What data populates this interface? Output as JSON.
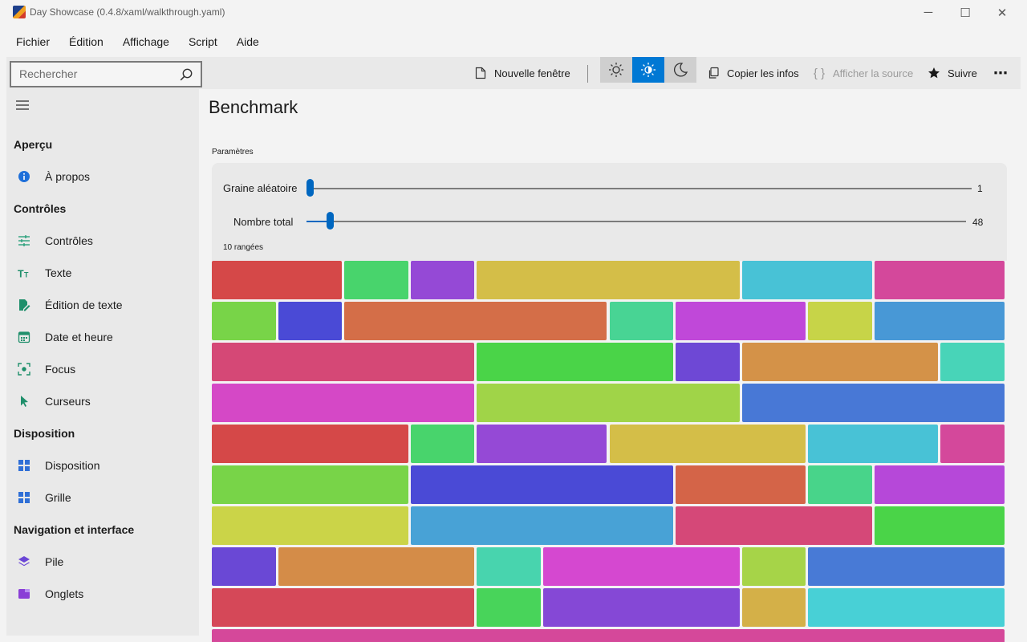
{
  "window": {
    "title": "Day Showcase (0.4.8/xaml/walkthrough.yaml)",
    "controls": [
      "─",
      "☐",
      "✕"
    ]
  },
  "menu": [
    "Fichier",
    "Édition",
    "Affichage",
    "Script",
    "Aide"
  ],
  "toolbar": {
    "search_placeholder": "Rechercher",
    "new_window": "Nouvelle fenêtre",
    "copy_info": "Copier les infos",
    "show_source": "Afficher la source",
    "follow": "Suivre",
    "more": "⋯",
    "theme_selected": "contrast",
    "accent_color": "#0078d4"
  },
  "sidebar": {
    "sections": [
      {
        "title": "Aperçu",
        "items": [
          {
            "label": "À propos",
            "icon": "info-icon"
          }
        ]
      },
      {
        "title": "Contrôles",
        "items": [
          {
            "label": "Contrôles",
            "icon": "sliders-icon"
          },
          {
            "label": "Texte",
            "icon": "text-icon"
          },
          {
            "label": "Édition de texte",
            "icon": "edit-icon"
          },
          {
            "label": "Date et heure",
            "icon": "calendar-icon"
          },
          {
            "label": "Focus",
            "icon": "focus-icon"
          },
          {
            "label": "Curseurs",
            "icon": "cursor-icon"
          }
        ]
      },
      {
        "title": "Disposition",
        "items": [
          {
            "label": "Disposition",
            "icon": "layout-icon"
          },
          {
            "label": "Grille",
            "icon": "grid-icon"
          }
        ]
      },
      {
        "title": "Navigation et interface",
        "items": [
          {
            "label": "Pile",
            "icon": "stack-icon"
          },
          {
            "label": "Onglets",
            "icon": "tabs-icon"
          }
        ]
      }
    ]
  },
  "main": {
    "title": "Benchmark",
    "params_label": "Paramètres",
    "sliders": [
      {
        "label": "Graine aléatoire",
        "value": "1",
        "fraction": 0.0
      },
      {
        "label": "Nombre total",
        "value": "48",
        "fraction": 0.03
      }
    ],
    "rows_label": "10 rangées",
    "rows": [
      [
        [
          "#d54848",
          2
        ],
        [
          "#48d46c",
          1
        ],
        [
          "#9549d6",
          1
        ],
        [
          "#d4be48",
          4
        ],
        [
          "#48c2d6",
          2
        ],
        [
          "#d4489b",
          2
        ]
      ],
      [
        [
          "#78d448",
          1
        ],
        [
          "#4a4ad6",
          1
        ],
        [
          "#d46e48",
          4
        ],
        [
          "#48d494",
          1
        ],
        [
          "#c048d9",
          2
        ],
        [
          "#c7d448",
          1
        ],
        [
          "#4898d6",
          2
        ]
      ],
      [
        [
          "#d54876",
          4
        ],
        [
          "#4ad448",
          3
        ],
        [
          "#6e48d5",
          1
        ],
        [
          "#d49248",
          3
        ],
        [
          "#48d4b8",
          1
        ]
      ],
      [
        [
          "#d548c6",
          4
        ],
        [
          "#a0d448",
          4
        ],
        [
          "#4878d6",
          4
        ]
      ],
      [
        [
          "#d54848",
          3
        ],
        [
          "#48d46c",
          1
        ],
        [
          "#9549d6",
          2
        ],
        [
          "#d4be48",
          3
        ],
        [
          "#48c2d6",
          2
        ],
        [
          "#d4489b",
          1
        ]
      ],
      [
        [
          "#78d448",
          3
        ],
        [
          "#4a4ad6",
          4
        ],
        [
          "#d46448",
          2
        ],
        [
          "#48d48a",
          1
        ],
        [
          "#b648d9",
          2
        ]
      ],
      [
        [
          "#cbd448",
          3
        ],
        [
          "#48a2d6",
          4
        ],
        [
          "#d54878",
          3
        ],
        [
          "#4ad448",
          2
        ]
      ],
      [
        [
          "#6a48d5",
          1
        ],
        [
          "#d48c48",
          3
        ],
        [
          "#48d4ae",
          1
        ],
        [
          "#d548d0",
          3
        ],
        [
          "#a6d448",
          1
        ],
        [
          "#487ad6",
          3
        ]
      ],
      [
        [
          "#d54858",
          4
        ],
        [
          "#48d45a",
          1
        ],
        [
          "#8548d6",
          3
        ],
        [
          "#d4b048",
          1
        ],
        [
          "#48d0d6",
          3
        ]
      ],
      [
        [
          "#d5489a",
          12
        ]
      ]
    ]
  }
}
